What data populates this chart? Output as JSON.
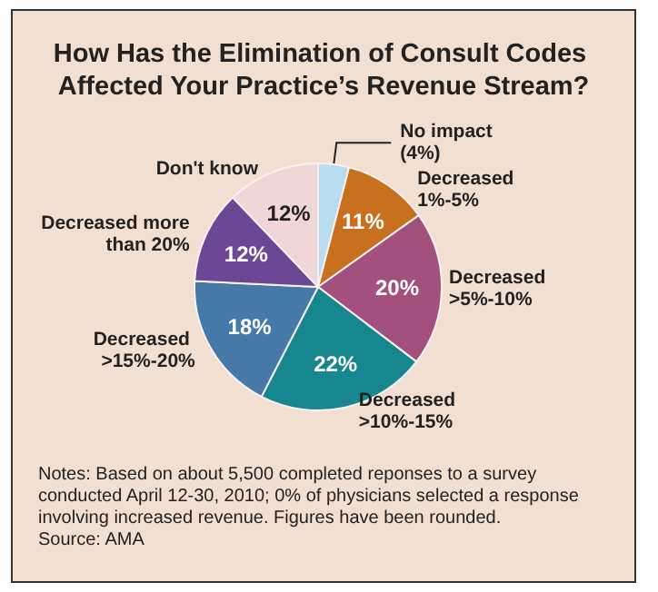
{
  "chart_data": {
    "type": "pie",
    "title": "How Has the Elimination of Consult Codes Affected Your Practice’s Revenue Stream?",
    "categories": [
      "No impact",
      "Decreased 1%-5%",
      "Decreased >5%-10%",
      "Decreased >10%-15%",
      "Decreased >15%-20%",
      "Decreased more than 20%",
      "Don't know"
    ],
    "values": [
      4,
      11,
      20,
      22,
      18,
      12,
      12
    ],
    "value_labels": [
      "(4%)",
      "11%",
      "20%",
      "22%",
      "18%",
      "12%",
      "12%"
    ],
    "colors": [
      "#b9dcf0",
      "#c8701e",
      "#a3507c",
      "#16878f",
      "#4678a8",
      "#6c4796",
      "#f1d6d8"
    ],
    "annotations": [
      "Notes: Based on about 5,500 completed reponses to a survey conducted April 12-30, 2010; 0% of physicians selected a response involving increased revenue. Figures have been rounded.",
      "Source: AMA"
    ]
  }
}
